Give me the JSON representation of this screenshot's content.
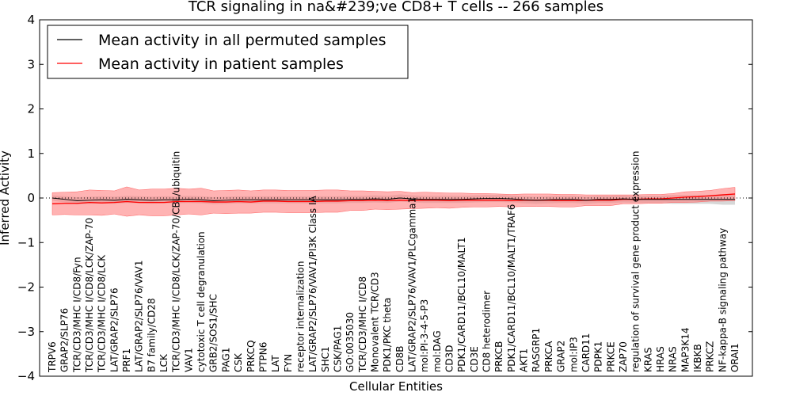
{
  "chart_data": {
    "type": "line",
    "title": "TCR signaling in na&#239;ve CD8+ T cells -- 266 samples",
    "xlabel": "Cellular Entities",
    "ylabel": "Inferred Activity",
    "ylim": [
      -4,
      4
    ],
    "yticks": [
      -4,
      -3,
      -2,
      -1,
      0,
      1,
      2,
      3,
      4
    ],
    "ytick_labels": [
      "−4",
      "−3",
      "−2",
      "−1",
      "0",
      "1",
      "2",
      "3",
      "4"
    ],
    "reference_line": 0,
    "legend_position": "top-left",
    "colors": {
      "permuted": "#000000",
      "patient": "#ff0000",
      "patient_band": "#ff8080",
      "permuted_band": "#b0b0b0"
    },
    "categories": [
      "TRPV6",
      "GRAP2/SLP76",
      "TCR/CD3/MHC I/CD8/Fyn",
      "TCR/CD3/MHC I/CD8/LCK/ZAP-70",
      "TCR/CD3/MHC I/CD8/LCK",
      "LAT/GRAP2/SLP76",
      "PRF1",
      "LAT/GRAP2/SLP76/VAV1",
      "B7 family/CD28",
      "LCK",
      "TCR/CD3/MHC I/CD8/LCK/ZAP-70/CBL/ubiquitin",
      "VAV1",
      "cytotoxic T cell degranulation",
      "GRB2/SOS1/SHC",
      "PAG1",
      "CSK",
      "PRKCQ",
      "PTPN6",
      "LAT",
      "FYN",
      "receptor internalization",
      "LAT/GRAP2/SLP76/VAV1/PI3K Class IA",
      "SHC1",
      "CSK/PAG1",
      "GO:0035030",
      "TCR/CD3/MHC I/CD8",
      "Monovalent TCR/CD3",
      "PDK1/PKC theta",
      "CD8B",
      "LAT/GRAP2/SLP76/VAV1/PLCgamma1",
      "mol:PI-3-4-5-P3",
      "mol:DAG",
      "CD3D",
      "PDK1/CARD11/BCL10/MALT1",
      "CD3E",
      "CD8 heterodimer",
      "PRKCB",
      "PDK1/CARD11/BCL10/MALT1/TRAF6",
      "AKT1",
      "RASGRP1",
      "PRKCA",
      "GRAP2",
      "mol:IP3",
      "CARD11",
      "PDPK1",
      "PRKCE",
      "ZAP70",
      "regulation of survival gene product expression",
      "KRAS",
      "HRAS",
      "NRAS",
      "MAP3K14",
      "IKBKB",
      "PRKCZ",
      "NF-kappa-B signaling pathway",
      "ORAI1"
    ],
    "series": [
      {
        "name": "Mean activity in all permuted samples",
        "values": [
          0.0,
          -0.03,
          -0.06,
          -0.05,
          -0.04,
          -0.05,
          -0.03,
          -0.04,
          -0.05,
          -0.04,
          -0.04,
          -0.03,
          -0.04,
          -0.06,
          -0.05,
          -0.04,
          -0.04,
          -0.04,
          -0.04,
          -0.04,
          -0.04,
          -0.04,
          -0.04,
          -0.04,
          -0.03,
          -0.03,
          -0.02,
          -0.03,
          0.0,
          -0.02,
          -0.03,
          -0.03,
          -0.03,
          -0.03,
          -0.02,
          -0.01,
          -0.01,
          -0.02,
          -0.04,
          -0.05,
          -0.04,
          -0.03,
          -0.03,
          -0.05,
          -0.03,
          -0.03,
          -0.02,
          -0.03,
          -0.03,
          -0.03,
          -0.03,
          -0.03,
          -0.03,
          -0.03,
          -0.03,
          -0.03
        ],
        "band": [
          0.06,
          0.07,
          0.08,
          0.08,
          0.08,
          0.08,
          0.08,
          0.08,
          0.08,
          0.08,
          0.08,
          0.08,
          0.08,
          0.08,
          0.08,
          0.08,
          0.08,
          0.08,
          0.08,
          0.08,
          0.08,
          0.08,
          0.08,
          0.08,
          0.08,
          0.08,
          0.08,
          0.08,
          0.08,
          0.08,
          0.08,
          0.08,
          0.08,
          0.08,
          0.08,
          0.08,
          0.08,
          0.08,
          0.08,
          0.08,
          0.08,
          0.08,
          0.08,
          0.08,
          0.08,
          0.08,
          0.08,
          0.08,
          0.08,
          0.08,
          0.1,
          0.1,
          0.1,
          0.1,
          0.12,
          0.12
        ]
      },
      {
        "name": "Mean activity in patient samples",
        "values": [
          -0.13,
          -0.12,
          -0.12,
          -0.1,
          -0.11,
          -0.1,
          -0.08,
          -0.1,
          -0.1,
          -0.1,
          -0.08,
          -0.08,
          -0.08,
          -0.09,
          -0.09,
          -0.08,
          -0.09,
          -0.07,
          -0.07,
          -0.08,
          -0.08,
          -0.08,
          -0.07,
          -0.07,
          -0.06,
          -0.06,
          -0.05,
          -0.06,
          -0.05,
          -0.06,
          -0.05,
          -0.05,
          -0.06,
          -0.05,
          -0.05,
          -0.05,
          -0.05,
          -0.06,
          -0.05,
          -0.05,
          -0.05,
          -0.06,
          -0.06,
          -0.05,
          -0.05,
          -0.05,
          -0.03,
          -0.03,
          -0.02,
          -0.02,
          0.0,
          0.02,
          0.03,
          0.05,
          0.07,
          0.09
        ],
        "band": [
          0.25,
          0.25,
          0.26,
          0.28,
          0.28,
          0.26,
          0.33,
          0.28,
          0.3,
          0.3,
          0.3,
          0.28,
          0.3,
          0.25,
          0.26,
          0.26,
          0.25,
          0.25,
          0.25,
          0.25,
          0.25,
          0.25,
          0.25,
          0.25,
          0.22,
          0.22,
          0.2,
          0.2,
          0.2,
          0.18,
          0.18,
          0.17,
          0.17,
          0.16,
          0.15,
          0.15,
          0.14,
          0.14,
          0.14,
          0.14,
          0.14,
          0.14,
          0.14,
          0.12,
          0.12,
          0.12,
          0.1,
          0.1,
          0.1,
          0.1,
          0.1,
          0.12,
          0.12,
          0.12,
          0.14,
          0.15
        ]
      }
    ]
  }
}
